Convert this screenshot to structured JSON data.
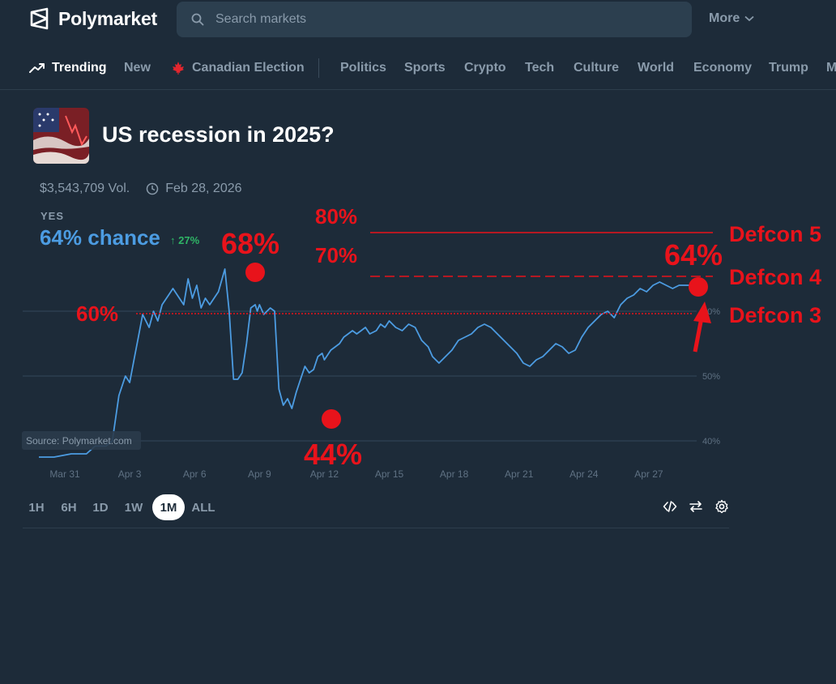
{
  "header": {
    "app_name": "Polymarket",
    "search_placeholder": "Search markets",
    "more_label": "More"
  },
  "nav": {
    "items": [
      {
        "label": "Trending",
        "icon": "trending-up-icon",
        "active": true
      },
      {
        "label": "New"
      },
      {
        "label": "Canadian Election",
        "icon": "maple-leaf-icon"
      },
      {
        "label": "Politics"
      },
      {
        "label": "Sports"
      },
      {
        "label": "Crypto"
      },
      {
        "label": "Tech"
      },
      {
        "label": "Culture"
      },
      {
        "label": "World"
      },
      {
        "label": "Economy"
      },
      {
        "label": "Trump"
      },
      {
        "label": "M"
      }
    ]
  },
  "market": {
    "title": "US recession in 2025?",
    "volume": "$3,543,709 Vol.",
    "end_date": "Feb 28, 2026",
    "outcome_label": "YES",
    "chance": "64% chance",
    "change": "↑ 27%"
  },
  "chart_data": {
    "type": "line",
    "x_ticks": [
      "Mar 31",
      "Apr 3",
      "Apr 6",
      "Apr 9",
      "Apr 12",
      "Apr 15",
      "Apr 18",
      "Apr 21",
      "Apr 24",
      "Apr 27"
    ],
    "y_ticks": [
      "60%",
      "50%",
      "40%"
    ],
    "ylim": [
      38,
      68
    ],
    "source": "Source: Polymarket.com",
    "series": [
      {
        "color": "#4c9ce2",
        "x": [
          -1.2,
          -0.5,
          0.3,
          1.0,
          1.4,
          1.9,
          2.2,
          2.5,
          2.8,
          3.0,
          3.2,
          3.4,
          3.6,
          3.9,
          4.1,
          4.3,
          4.5,
          4.8,
          5.0,
          5.3,
          5.5,
          5.7,
          5.9,
          6.1,
          6.3,
          6.5,
          6.7,
          6.9,
          7.1,
          7.4,
          7.6,
          7.8,
          8.0,
          8.2,
          8.4,
          8.6,
          8.8,
          8.9,
          9.0,
          9.2,
          9.5,
          9.7,
          9.9,
          10.1,
          10.3,
          10.5,
          10.7,
          10.9,
          11.1,
          11.3,
          11.5,
          11.7,
          11.9,
          12.0,
          12.1,
          12.3,
          12.5,
          12.7,
          12.9,
          13.1,
          13.3,
          13.5,
          13.7,
          13.9,
          14.1,
          14.4,
          14.6,
          14.8,
          15.0,
          15.3,
          15.6,
          15.9,
          16.2,
          16.5,
          16.8,
          17.0,
          17.3,
          17.6,
          17.9,
          18.2,
          18.5,
          18.8,
          19.1,
          19.4,
          19.7,
          20.0,
          20.3,
          20.6,
          20.9,
          21.2,
          21.5,
          21.8,
          22.1,
          22.4,
          22.7,
          23.0,
          23.3,
          23.6,
          23.9,
          24.2,
          24.5,
          24.8,
          25.1,
          25.4,
          25.7,
          26.0,
          26.3,
          26.6,
          26.9,
          27.2,
          27.5,
          27.8,
          28.1,
          28.4,
          28.7,
          28.9
        ],
        "y": [
          37.5,
          37.5,
          38.0,
          38.0,
          39.2,
          39.2,
          40.0,
          47.0,
          50.0,
          49.0,
          52.5,
          56.0,
          59.5,
          57.5,
          60.0,
          58.5,
          61.0,
          62.5,
          63.5,
          62.0,
          61.0,
          65.0,
          62.0,
          64.0,
          60.5,
          62.0,
          61.0,
          62.0,
          63.0,
          66.5,
          60.0,
          49.5,
          49.5,
          50.5,
          55.0,
          60.5,
          61.0,
          60.0,
          61.0,
          59.5,
          60.5,
          60.0,
          48.0,
          45.5,
          46.5,
          45.0,
          47.5,
          49.5,
          51.5,
          50.5,
          51.0,
          53.0,
          53.5,
          52.5,
          53.0,
          54.0,
          54.5,
          55.0,
          56.0,
          56.5,
          57.0,
          56.5,
          57.0,
          57.5,
          56.5,
          57.0,
          58.0,
          57.5,
          58.5,
          57.5,
          57.0,
          58.0,
          57.5,
          55.5,
          54.5,
          53.0,
          52.0,
          53.0,
          54.0,
          55.5,
          56.0,
          56.5,
          57.5,
          58.0,
          57.5,
          56.5,
          55.5,
          54.5,
          53.5,
          52.0,
          51.5,
          52.5,
          53.0,
          54.0,
          55.0,
          54.5,
          53.5,
          54.0,
          56.0,
          57.5,
          58.5,
          59.5,
          60.0,
          59.0,
          61.0,
          62.0,
          62.5,
          63.5,
          63.0,
          64.0,
          64.5,
          64.0,
          63.5,
          64.0,
          64.0,
          64.0
        ]
      }
    ],
    "annotations": {
      "labels": [
        "80%",
        "70%",
        "60%",
        "68%",
        "44%",
        "64%",
        "Defcon 5",
        "Defcon 4",
        "Defcon 3"
      ],
      "color": "#e8131b"
    }
  },
  "controls": {
    "time_ranges": [
      "1H",
      "6H",
      "1D",
      "1W",
      "1M",
      "ALL"
    ],
    "active_range": "1M",
    "tool_icons": [
      "embed-code-icon",
      "swap-icon",
      "settings-icon"
    ]
  }
}
